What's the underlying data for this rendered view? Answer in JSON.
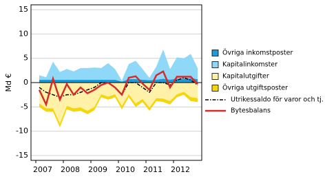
{
  "chart_data": {
    "type": "stacked-area-line",
    "y_label": "Md €",
    "categories": [
      "2007",
      null,
      null,
      null,
      "2008",
      null,
      null,
      null,
      "2009",
      null,
      null,
      null,
      "2010",
      null,
      null,
      null,
      "2011",
      null,
      null,
      null,
      "2012",
      null,
      null,
      null
    ],
    "ylim": [
      -16,
      16
    ],
    "yticks": [
      -15,
      -10,
      -5,
      0,
      5,
      10,
      15
    ],
    "grid": true,
    "series": [
      {
        "name": "Övriga inkomstposter",
        "kind": "area",
        "color": "#1a9bd7",
        "values": [
          0.6,
          0.6,
          0.6,
          0.6,
          0.6,
          0.6,
          0.6,
          0.6,
          0.6,
          0.6,
          0.6,
          0.6,
          0.2,
          0.7,
          0.7,
          0.6,
          0.5,
          0.6,
          0.8,
          0.6,
          0.8,
          0.8,
          0.9,
          0.7
        ]
      },
      {
        "name": "Kapitalinkomster",
        "kind": "area",
        "color": "#8fd8f8",
        "values": [
          0.9,
          0.5,
          3.7,
          1.6,
          2.2,
          1.7,
          2.4,
          2.4,
          2.5,
          2.4,
          3.4,
          2.2,
          0.2,
          3.1,
          3.8,
          2.2,
          0.5,
          2.7,
          6.0,
          2.2,
          4.4,
          4.2,
          5.0,
          2.3
        ]
      },
      {
        "name": "Kapitalutgifter",
        "kind": "area",
        "color": "#fff2a8",
        "values": [
          -4.3,
          -5.3,
          -5.3,
          -8.4,
          -4.8,
          -5.3,
          -5.1,
          -5.8,
          -5.0,
          -2.4,
          -2.9,
          -2.4,
          -4.8,
          -2.4,
          -4.3,
          -3.4,
          -5.1,
          -3.2,
          -3.3,
          -3.8,
          -2.4,
          -1.9,
          -3.0,
          -3.2
        ]
      },
      {
        "name": "Övriga utgiftsposter",
        "kind": "area",
        "color": "#f5d60a",
        "values": [
          -0.7,
          -0.7,
          -0.7,
          -0.8,
          -0.7,
          -0.7,
          -0.7,
          -0.7,
          -0.7,
          -0.6,
          -0.6,
          -0.6,
          -0.7,
          -0.6,
          -0.7,
          -0.6,
          -0.7,
          -0.6,
          -0.7,
          -0.7,
          -0.6,
          -0.6,
          -0.8,
          -0.8
        ]
      },
      {
        "name": "Utrikessaldo för varor och tj.",
        "kind": "dashed",
        "color": "#000000",
        "values": [
          -1,
          -2,
          -2.5,
          -3,
          -2.5,
          -2.5,
          -2,
          -1.5,
          -1,
          0,
          0,
          -1,
          -2.5,
          0,
          0,
          -1,
          -2,
          0,
          0,
          -0.5,
          0.5,
          1,
          0.5,
          -0.5
        ]
      },
      {
        "name": "Bytesbalans",
        "kind": "line",
        "color": "#d62b2b",
        "values": [
          -1.5,
          -4.5,
          0.8,
          -3.5,
          -0.3,
          -2.5,
          -1,
          -2.2,
          -1.5,
          -0.5,
          0,
          -1,
          -2.5,
          1,
          1.3,
          -0.2,
          -1.5,
          1.5,
          2.3,
          -1,
          1.2,
          1.2,
          1.2,
          -0.3
        ]
      }
    ]
  }
}
